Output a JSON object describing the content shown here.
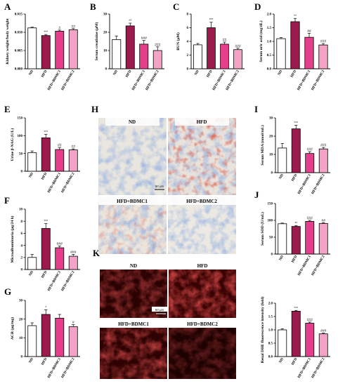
{
  "colors": {
    "ND": "#ffffff",
    "HFD": "#9b1b4e",
    "HFD+BDMC1": "#e53e8b",
    "HFD+BDMC2": "#f4a3c6"
  },
  "groups": [
    "ND",
    "HFD",
    "HFD+BDMC1",
    "HFD+BDMC2"
  ],
  "chart_data": [
    {
      "id": "A",
      "type": "bar",
      "ylabel": "Kidney weight/body weight",
      "ylim": [
        0.0,
        0.015
      ],
      "yticks": [
        "0.000",
        "0.005",
        "0.010",
        "0.015"
      ],
      "values": [
        0.0112,
        0.0091,
        0.0103,
        0.0107
      ],
      "errors": [
        0.0002,
        0.0003,
        0.0003,
        0.0003
      ],
      "sig": [
        "",
        "***",
        "#",
        "##"
      ]
    },
    {
      "id": "B",
      "type": "bar",
      "ylabel": "Serum creatinine (μM)",
      "ylim": [
        0,
        30
      ],
      "yticks": [
        "0",
        "10",
        "20",
        "30"
      ],
      "values": [
        16,
        23.5,
        13.5,
        10
      ],
      "errors": [
        2,
        1.5,
        2,
        2
      ],
      "sig": [
        "",
        "**",
        "###",
        "###"
      ]
    },
    {
      "id": "C",
      "type": "bar",
      "ylabel": "BUN (μM)",
      "ylim": [
        0,
        8
      ],
      "yticks": [
        "0",
        "2",
        "4",
        "6",
        "8"
      ],
      "values": [
        3.5,
        6,
        3.6,
        2.8
      ],
      "errors": [
        0.2,
        0.8,
        0.3,
        0.2
      ],
      "sig": [
        "",
        "***",
        "##",
        "###"
      ]
    },
    {
      "id": "D",
      "type": "bar",
      "ylabel": "Serum uric acid (mg/dL)",
      "ylim": [
        0.0,
        2.0
      ],
      "yticks": [
        "0.0",
        "0.5",
        "1.0",
        "1.5",
        "2.0"
      ],
      "values": [
        1.1,
        1.72,
        1.15,
        0.87
      ],
      "errors": [
        0.04,
        0.12,
        0.15,
        0.05
      ],
      "sig": [
        "",
        "**",
        "##",
        "###"
      ]
    },
    {
      "id": "E",
      "type": "bar",
      "ylabel": "Urine β-NAG (U/L)",
      "ylim": [
        0,
        150
      ],
      "yticks": [
        "0",
        "50",
        "100",
        "150"
      ],
      "values": [
        52,
        94,
        61,
        60
      ],
      "errors": [
        5,
        10,
        6,
        3
      ],
      "sig": [
        "",
        "***",
        "##",
        "##"
      ]
    },
    {
      "id": "F",
      "type": "bar",
      "ylabel": "Microalbuminuria (μg/24 h)",
      "ylim": [
        0,
        10
      ],
      "yticks": [
        "0",
        "2",
        "4",
        "6",
        "8",
        "10"
      ],
      "values": [
        2.0,
        6.8,
        3.6,
        2.2
      ],
      "errors": [
        0.5,
        0.8,
        0.3,
        0.3
      ],
      "sig": [
        "",
        "***",
        "###",
        "###"
      ]
    },
    {
      "id": "G",
      "type": "bar",
      "ylabel": "ACR (μg/mg)",
      "ylim": [
        0,
        30
      ],
      "yticks": [
        "0",
        "10",
        "20",
        "30"
      ],
      "values": [
        16.5,
        22.5,
        20.5,
        16
      ],
      "errors": [
        1.5,
        2.5,
        2,
        1
      ],
      "sig": [
        "",
        "*",
        "",
        "#"
      ]
    },
    {
      "id": "I",
      "type": "bar",
      "ylabel": "Serum MDA (nmol/mL)",
      "ylim": [
        0,
        30
      ],
      "yticks": [
        "0",
        "10",
        "20",
        "30"
      ],
      "values": [
        13.5,
        24,
        10.5,
        13
      ],
      "errors": [
        2.5,
        2,
        1,
        0.8
      ],
      "sig": [
        "",
        "***",
        "###",
        "###"
      ]
    },
    {
      "id": "J",
      "type": "bar",
      "ylabel": "Serum SOD (U/mL)",
      "ylim": [
        0,
        150
      ],
      "yticks": [
        "0",
        "50",
        "100",
        "150"
      ],
      "values": [
        90,
        82,
        97,
        91
      ],
      "errors": [
        2,
        2,
        3,
        2
      ],
      "sig": [
        "",
        "**",
        "###",
        "##"
      ]
    },
    {
      "id": "K",
      "type": "bar",
      "ylabel": "Renal DHE fluorescence intensity (fold)",
      "ylim": [
        0.0,
        2.0
      ],
      "yticks": [
        "0.0",
        "0.5",
        "1.0",
        "1.5",
        "2.0"
      ],
      "values": [
        1.0,
        1.7,
        1.25,
        0.85
      ],
      "errors": [
        0.04,
        0.03,
        0.04,
        0.03
      ],
      "sig": [
        "",
        "***",
        "###",
        "###"
      ]
    }
  ],
  "images": {
    "H": {
      "labels": [
        "ND",
        "HFD",
        "HFD+BDMC1",
        "HFD+BDMC2"
      ],
      "scale": "50 μm"
    },
    "K": {
      "labels": [
        "ND",
        "HFD",
        "HFD+BDMC1",
        "HFD+BDMC2"
      ],
      "scale": "50 μm"
    }
  }
}
